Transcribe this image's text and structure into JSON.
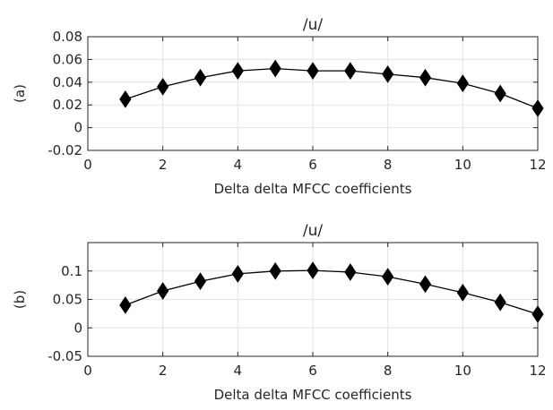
{
  "chart_data": [
    {
      "type": "line",
      "title": "/u/",
      "xlabel": "Delta delta MFCC coefficients",
      "ylabel": "(a)",
      "xlim": [
        0,
        12
      ],
      "ylim": [
        -0.02,
        0.08
      ],
      "xticks": [
        0,
        2,
        4,
        6,
        8,
        10,
        12
      ],
      "yticks": [
        -0.02,
        0,
        0.02,
        0.04,
        0.06,
        0.08
      ],
      "ytick_labels": [
        "-0.02",
        "0",
        "0.02",
        "0.04",
        "0.06",
        "0.08"
      ],
      "grid": true,
      "marker": "diamond",
      "color": "#000000",
      "series": [
        {
          "x": [
            1,
            2,
            3,
            4,
            5,
            6,
            7,
            8,
            9,
            10,
            11,
            12
          ],
          "values": [
            0.025,
            0.036,
            0.044,
            0.05,
            0.052,
            0.05,
            0.05,
            0.047,
            0.044,
            0.039,
            0.03,
            0.017
          ]
        }
      ]
    },
    {
      "type": "line",
      "title": "/u/",
      "xlabel": "Delta delta MFCC coefficients",
      "ylabel": "(b)",
      "xlim": [
        0,
        12
      ],
      "ylim": [
        -0.05,
        0.15
      ],
      "xticks": [
        0,
        2,
        4,
        6,
        8,
        10,
        12
      ],
      "yticks": [
        -0.05,
        0,
        0.05,
        0.1
      ],
      "ytick_labels": [
        "-0.05",
        "0",
        "0.05",
        "0.1"
      ],
      "grid": true,
      "marker": "diamond",
      "color": "#000000",
      "series": [
        {
          "x": [
            1,
            2,
            3,
            4,
            5,
            6,
            7,
            8,
            9,
            10,
            11,
            12
          ],
          "values": [
            0.04,
            0.065,
            0.082,
            0.095,
            0.1,
            0.101,
            0.098,
            0.09,
            0.077,
            0.062,
            0.045,
            0.024
          ]
        }
      ]
    }
  ]
}
